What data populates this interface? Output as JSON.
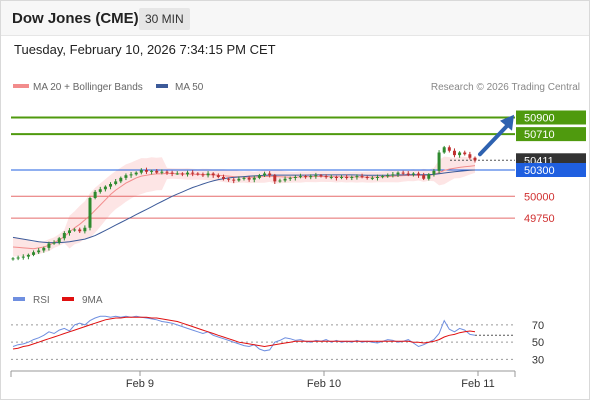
{
  "header": {
    "title": "Dow Jones (CME)",
    "interval": "30 MIN"
  },
  "datetime": "Tuesday, February 10, 2026 7:34:15 PM CET",
  "legend_top": [
    {
      "label": "MA 20 + Bollinger Bands",
      "color": "#f28c8c"
    },
    {
      "label": "MA 50",
      "color": "#3c5a99"
    }
  ],
  "copyright": "Research © 2026 Trading Central",
  "colors": {
    "resistance": "#4f9a0e",
    "pivot": "#1f5fe0",
    "support": "#e56b6b",
    "last": "#333333",
    "arrow": "#2e62b0",
    "up_candle": "#2f8a2f",
    "down_candle": "#c03030",
    "bb_fill": "#fbd3d3",
    "ma20": "#f28c8c",
    "ma50": "#3c5a99",
    "rsi": "#6f8fe0",
    "rsi_ma": "#e01010"
  },
  "chart_data": [
    {
      "type": "candlestick",
      "ylim": [
        49100,
        51100
      ],
      "x_tick_labels": [
        "Feb 9",
        "Feb 10",
        "Feb 11"
      ],
      "levels": [
        {
          "value": 50900,
          "label": "50900",
          "kind": "resistance"
        },
        {
          "value": 50710,
          "label": "50710",
          "kind": "resistance"
        },
        {
          "value": 50411,
          "label": "50411",
          "kind": "last"
        },
        {
          "value": 50300,
          "label": "50300",
          "kind": "pivot"
        },
        {
          "value": 50000,
          "label": "50000",
          "kind": "support"
        },
        {
          "value": 49750,
          "label": "49750",
          "kind": "support"
        }
      ],
      "close": [
        49290,
        49300,
        49310,
        49330,
        49360,
        49380,
        49410,
        49460,
        49470,
        49520,
        49580,
        49610,
        49620,
        49600,
        49640,
        49980,
        50050,
        50080,
        50110,
        50140,
        50170,
        50210,
        50240,
        50250,
        50270,
        50300,
        50280,
        50290,
        50270,
        50280,
        50270,
        50260,
        50260,
        50250,
        50270,
        50260,
        50250,
        50240,
        50260,
        50240,
        50220,
        50200,
        50190,
        50180,
        50200,
        50210,
        50190,
        50210,
        50240,
        50260,
        50240,
        50170,
        50180,
        50200,
        50210,
        50220,
        50230,
        50220,
        50230,
        50240,
        50230,
        50220,
        50220,
        50210,
        50220,
        50210,
        50220,
        50230,
        50220,
        50210,
        50210,
        50220,
        50230,
        50240,
        50250,
        50270,
        50260,
        50250,
        50260,
        50240,
        50200,
        50250,
        50290,
        50500,
        50560,
        50520,
        50470,
        50500,
        50480,
        50440,
        50411
      ],
      "ma20": [
        49420,
        49415,
        49410,
        49405,
        49400,
        49410,
        49420,
        49440,
        49470,
        49500,
        49540,
        49590,
        49640,
        49680,
        49730,
        49780,
        49840,
        49900,
        49960,
        50020,
        50070,
        50110,
        50150,
        50180,
        50210,
        50230,
        50240,
        50250,
        50255,
        50258,
        50260,
        50260,
        50258,
        50256,
        50254,
        50252,
        50250,
        50250,
        50248,
        50246,
        50240,
        50235,
        50230,
        50225,
        50222,
        50220,
        50218,
        50218,
        50222,
        50226,
        50228,
        50226,
        50222,
        50220,
        50218,
        50218,
        50220,
        50222,
        50224,
        50226,
        50226,
        50225,
        50224,
        50222,
        50222,
        50221,
        50220,
        50220,
        50220,
        50219,
        50219,
        50220,
        50222,
        50225,
        50228,
        50232,
        50236,
        50238,
        50240,
        50240,
        50238,
        50240,
        50248,
        50270,
        50295,
        50310,
        50320,
        50330,
        50338,
        50344,
        50350
      ],
      "ma50": [
        49530,
        49520,
        49510,
        49500,
        49490,
        49480,
        49475,
        49470,
        49470,
        49470,
        49475,
        49480,
        49490,
        49500,
        49510,
        49530,
        49550,
        49580,
        49610,
        49640,
        49670,
        49700,
        49730,
        49760,
        49790,
        49820,
        49850,
        49880,
        49910,
        49940,
        49970,
        50000,
        50025,
        50050,
        50075,
        50100,
        50120,
        50140,
        50160,
        50175,
        50190,
        50200,
        50210,
        50215,
        50220,
        50225,
        50230,
        50232,
        50236,
        50240,
        50242,
        50242,
        50242,
        50242,
        50242,
        50242,
        50242,
        50242,
        50243,
        50244,
        50244,
        50244,
        50244,
        50244,
        50244,
        50244,
        50244,
        50243,
        50242,
        50241,
        50240,
        50240,
        50240,
        50241,
        50242,
        50243,
        50244,
        50245,
        50246,
        50246,
        50246,
        50247,
        50250,
        50258,
        50266,
        50273,
        50280,
        50286,
        50292,
        50297,
        50300
      ]
    },
    {
      "type": "line",
      "legend": [
        "RSI",
        "9MA"
      ],
      "ylim": [
        20,
        85
      ],
      "y_tick_labels": [
        "70",
        "50",
        "30"
      ],
      "y_ticks": [
        70,
        50,
        30
      ],
      "rsi": [
        45,
        47,
        48,
        50,
        53,
        55,
        58,
        62,
        60,
        64,
        66,
        63,
        70,
        72,
        70,
        75,
        78,
        80,
        80,
        79,
        80,
        79,
        80,
        79,
        80,
        79,
        78,
        77,
        76,
        74,
        73,
        72,
        70,
        68,
        66,
        64,
        62,
        60,
        62,
        58,
        56,
        54,
        52,
        50,
        48,
        46,
        45,
        47,
        42,
        40,
        41,
        50,
        52,
        55,
        54,
        52,
        53,
        51,
        50,
        52,
        51,
        53,
        50,
        52,
        50,
        51,
        50,
        52,
        50,
        51,
        50,
        49,
        51,
        53,
        52,
        50,
        51,
        53,
        49,
        45,
        47,
        50,
        53,
        60,
        75,
        65,
        62,
        66,
        64,
        59,
        58
      ],
      "rsi_ma": [
        42,
        43,
        45,
        46,
        48,
        50,
        52,
        54,
        56,
        58,
        60,
        62,
        64,
        66,
        68,
        70,
        72,
        74,
        76,
        77,
        78,
        78,
        79,
        79,
        79,
        79,
        79,
        78,
        78,
        77,
        76,
        75,
        74,
        72,
        70,
        68,
        66,
        64,
        62,
        60,
        58,
        56,
        54,
        52,
        50,
        49,
        48,
        47,
        46,
        45,
        46,
        47,
        48,
        49,
        50,
        51,
        51,
        51,
        51,
        51,
        51,
        51,
        51,
        51,
        51,
        51,
        51,
        51,
        51,
        51,
        51,
        51,
        51,
        51,
        51,
        51,
        51,
        51,
        50,
        50,
        49,
        50,
        51,
        53,
        56,
        58,
        59,
        61,
        62,
        63,
        62
      ]
    }
  ],
  "legend_bottom": [
    {
      "label": "RSI",
      "color": "#6f8fe0"
    },
    {
      "label": "9MA",
      "color": "#e01010"
    }
  ]
}
